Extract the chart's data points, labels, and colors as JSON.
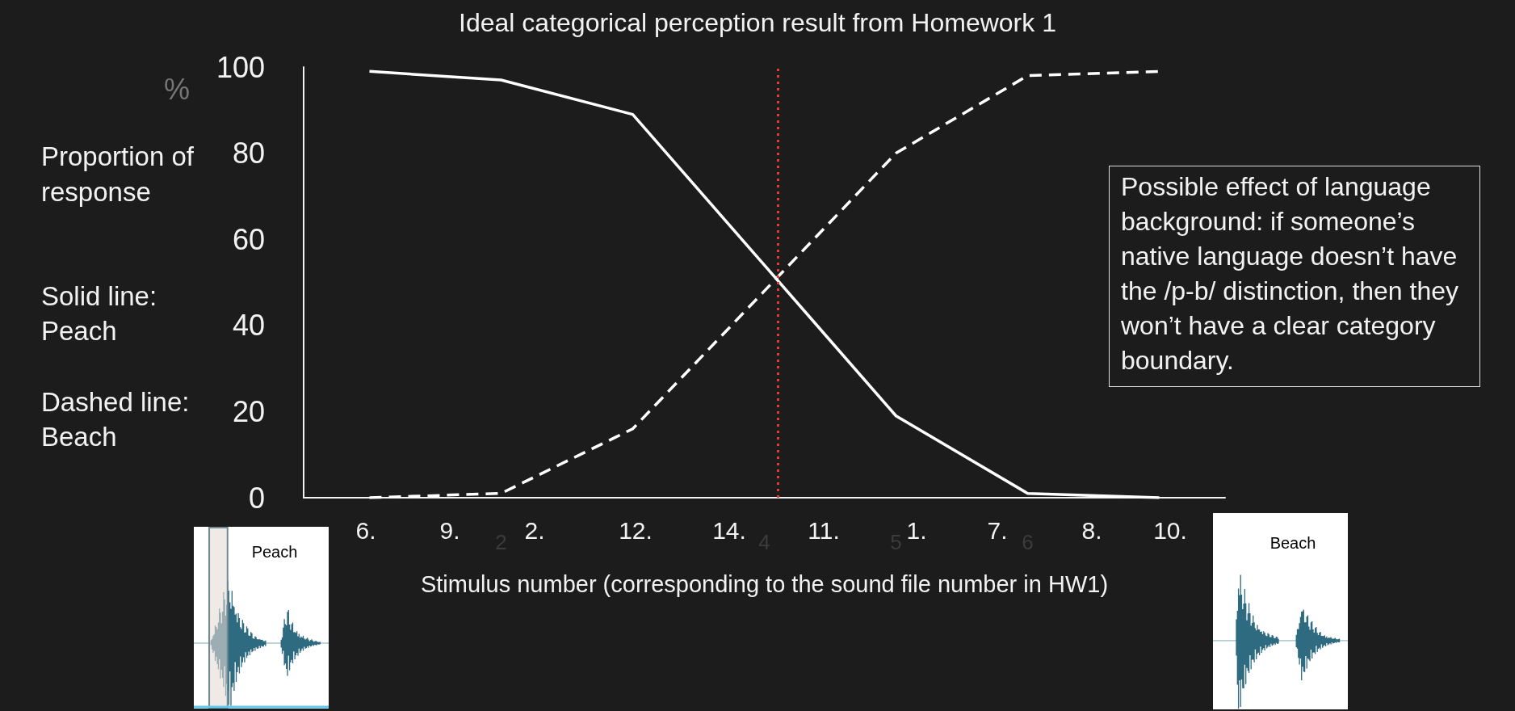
{
  "chart_data": {
    "type": "line",
    "title": "Ideal categorical perception result from Homework 1",
    "xlabel": "Stimulus number (corresponding to the sound file number in HW1)",
    "ylabel": "Proportion of response",
    "x": [
      1,
      2,
      3,
      4,
      5,
      6,
      7
    ],
    "series": [
      {
        "color": "#ffffff",
        "line_style": "solid",
        "values": [
          99,
          97,
          89,
          54,
          19,
          1,
          0
        ]
      },
      {
        "color": "#ffffff",
        "line_style": "dashed",
        "values": [
          0,
          1,
          16,
          48,
          80,
          98,
          99
        ]
      }
    ],
    "xlim": [
      0.5,
      7.5
    ],
    "xticks": [
      2,
      4,
      5,
      6
    ],
    "ylim": [
      0,
      100
    ],
    "yticks": [
      0,
      20,
      40,
      60,
      80,
      100
    ],
    "marker": "none",
    "ref_lines": [
      {
        "axis": "x",
        "value": 4.1,
        "color": "#e53935",
        "line_style": "dotted"
      }
    ],
    "annotations": [
      "%",
      "Solid line: Peach",
      "Dashed line: Beach",
      "Possible effect of language background: if someone’s native language doesn’t have the /p-b/ distinction, then they won’t have a clear category boundary.",
      "6.",
      "9.",
      "2.",
      "12.",
      "14.",
      "11.",
      "1.",
      "7.",
      "8.",
      "10.",
      "Peach",
      "Beach"
    ]
  }
}
